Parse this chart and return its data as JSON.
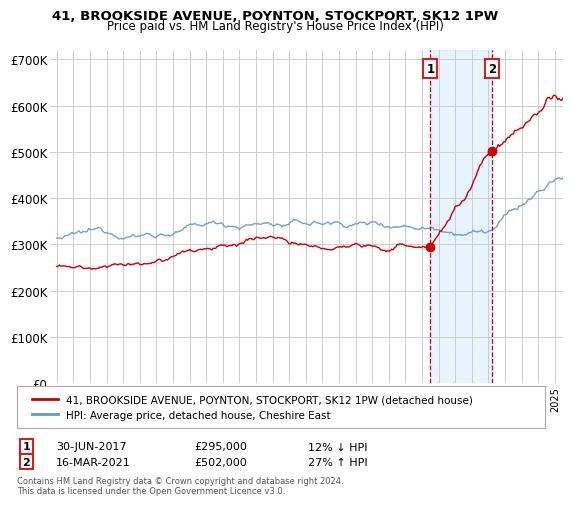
{
  "title1": "41, BROOKSIDE AVENUE, POYNTON, STOCKPORT, SK12 1PW",
  "title2": "Price paid vs. HM Land Registry's House Price Index (HPI)",
  "ylabel_ticks": [
    "£0",
    "£100K",
    "£200K",
    "£300K",
    "£400K",
    "£500K",
    "£600K",
    "£700K"
  ],
  "ytick_vals": [
    0,
    100000,
    200000,
    300000,
    400000,
    500000,
    600000,
    700000
  ],
  "ylim": [
    0,
    720000
  ],
  "sale1_x": 2017.5,
  "sale1_price": 295000,
  "sale2_x": 2021.21,
  "sale2_price": 502000,
  "sale1_label": "30-JUN-2017",
  "sale1_str": "£295,000",
  "sale1_pct": "12% ↓ HPI",
  "sale2_label": "16-MAR-2021",
  "sale2_str": "£502,000",
  "sale2_pct": "27% ↑ HPI",
  "legend_line1": "41, BROOKSIDE AVENUE, POYNTON, STOCKPORT, SK12 1PW (detached house)",
  "legend_line2": "HPI: Average price, detached house, Cheshire East",
  "footer": "Contains HM Land Registry data © Crown copyright and database right 2024.\nThis data is licensed under the Open Government Licence v3.0.",
  "line_color_red": "#cc0000",
  "line_color_blue": "#6699cc",
  "bg_color": "#ffffff",
  "grid_color": "#cccccc",
  "shade_color": "#ddeeff"
}
